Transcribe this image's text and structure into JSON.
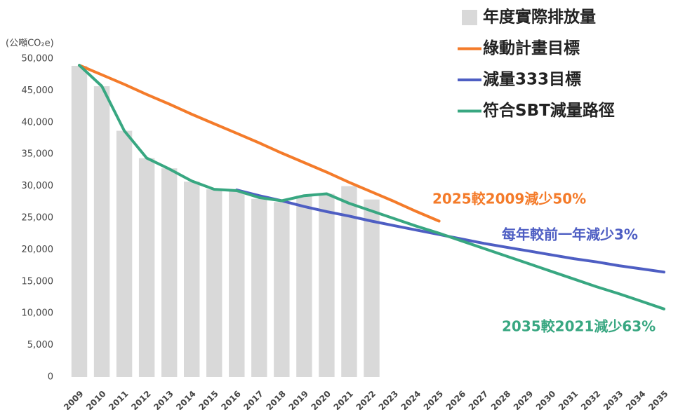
{
  "chart_data": {
    "type": "bar_line",
    "y_axis_label": "(公噸CO₂e)",
    "categories": [
      "2009",
      "2010",
      "2011",
      "2012",
      "2013",
      "2014",
      "2015",
      "2016",
      "2017",
      "2018",
      "2019",
      "2020",
      "2021",
      "2022",
      "2023",
      "2024",
      "2025",
      "2026",
      "2027",
      "2028",
      "2029",
      "2030",
      "2031",
      "2032",
      "2033",
      "2034",
      "2035"
    ],
    "ylim": [
      0,
      50000
    ],
    "yticks": [
      0,
      {
        "value": 5000,
        "label": "5,000"
      },
      {
        "value": 10000,
        "label": "10,000"
      },
      {
        "value": 15000,
        "label": "15,000"
      },
      {
        "value": 20000,
        "label": "20,000"
      },
      {
        "value": 25000,
        "label": "25,000"
      },
      {
        "value": 30000,
        "label": "30,000"
      },
      {
        "value": 35000,
        "label": "35,000"
      },
      {
        "value": 40000,
        "label": "40,000"
      },
      {
        "value": 45000,
        "label": "45,000"
      },
      {
        "value": 50000,
        "label": "50,000"
      }
    ],
    "series": [
      {
        "name": "年度實際排放量",
        "type": "bar",
        "color": "#d9d9d9",
        "values": [
          48900,
          45700,
          38700,
          34400,
          32800,
          30700,
          29500,
          29300,
          28000,
          27500,
          28500,
          28800,
          30000,
          27900,
          null,
          null,
          null,
          null,
          null,
          null,
          null,
          null,
          null,
          null,
          null,
          null,
          null
        ]
      },
      {
        "name": "綠動計畫目標",
        "type": "line",
        "color": "#f47b2a",
        "values": [
          49000,
          47500,
          46000,
          44400,
          42900,
          41300,
          39800,
          38300,
          36800,
          35200,
          33700,
          32200,
          30600,
          29100,
          27600,
          26000,
          24500,
          null,
          null,
          null,
          null,
          null,
          null,
          null,
          null,
          null,
          null
        ]
      },
      {
        "name": "減量333目標",
        "type": "line",
        "color": "#4e5ec3",
        "values": [
          null,
          null,
          null,
          null,
          null,
          null,
          null,
          29400,
          28500,
          27700,
          26800,
          26000,
          25300,
          24500,
          23800,
          23100,
          22400,
          21700,
          21000,
          20400,
          19800,
          19200,
          18600,
          18100,
          17500,
          17000,
          16500
        ]
      },
      {
        "name": "符合SBT減量路徑",
        "type": "line",
        "color": "#38a781",
        "values": [
          49000,
          45700,
          38700,
          34400,
          32700,
          30800,
          29500,
          29300,
          28200,
          27700,
          28500,
          28800,
          27300,
          26100,
          24900,
          23700,
          22600,
          21400,
          20200,
          19000,
          17800,
          16600,
          15400,
          14200,
          13100,
          11900,
          10700
        ]
      }
    ],
    "annotations": [
      {
        "text": "2025較2009減少50%",
        "color": "#f47b2a"
      },
      {
        "text": "每年較前一年減少3%",
        "color": "#4e5ec3"
      },
      {
        "text": "2035較2021減少63%",
        "color": "#38a781"
      }
    ]
  }
}
